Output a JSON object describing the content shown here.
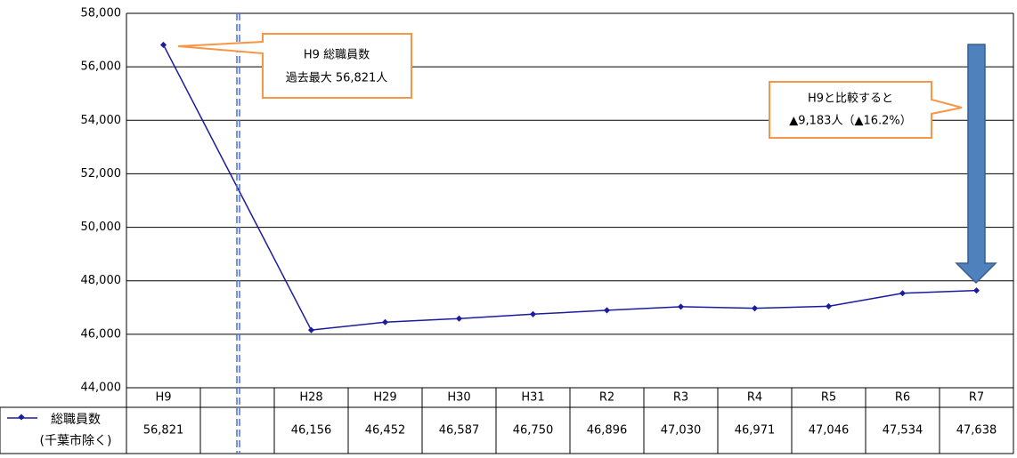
{
  "chart_data": {
    "type": "line",
    "categories": [
      "H9",
      null,
      "H28",
      "H29",
      "H30",
      "H31",
      "R2",
      "R3",
      "R4",
      "R5",
      "R6",
      "R7"
    ],
    "series": [
      {
        "name": "総職員数\n(千葉市除く)",
        "color": "#1b1b9e",
        "values": [
          56821,
          null,
          46156,
          46452,
          46587,
          46750,
          46896,
          47030,
          46971,
          47046,
          47534,
          47638
        ],
        "value_labels": [
          "56,821",
          null,
          "46,156",
          "46,452",
          "46,587",
          "46,750",
          "46,896",
          "47,030",
          "46,971",
          "47,046",
          "47,534",
          "47,638"
        ]
      }
    ],
    "ylim": [
      44000,
      58000
    ],
    "yticks": [
      {
        "value": 44000,
        "label": "44,000"
      },
      {
        "value": 46000,
        "label": "46,000"
      },
      {
        "value": 48000,
        "label": "48,000"
      },
      {
        "value": 50000,
        "label": "50,000"
      },
      {
        "value": 52000,
        "label": "52,000"
      },
      {
        "value": 54000,
        "label": "54,000"
      },
      {
        "value": 56000,
        "label": "56,000"
      },
      {
        "value": 58000,
        "label": "58,000"
      }
    ],
    "grid": true,
    "annotations": [
      {
        "lines": [
          "H9 総職員数",
          "過去最大 56,821人"
        ]
      },
      {
        "lines": [
          "H9と比較すると",
          "▲9,183人（▲16.2%）"
        ]
      }
    ]
  }
}
